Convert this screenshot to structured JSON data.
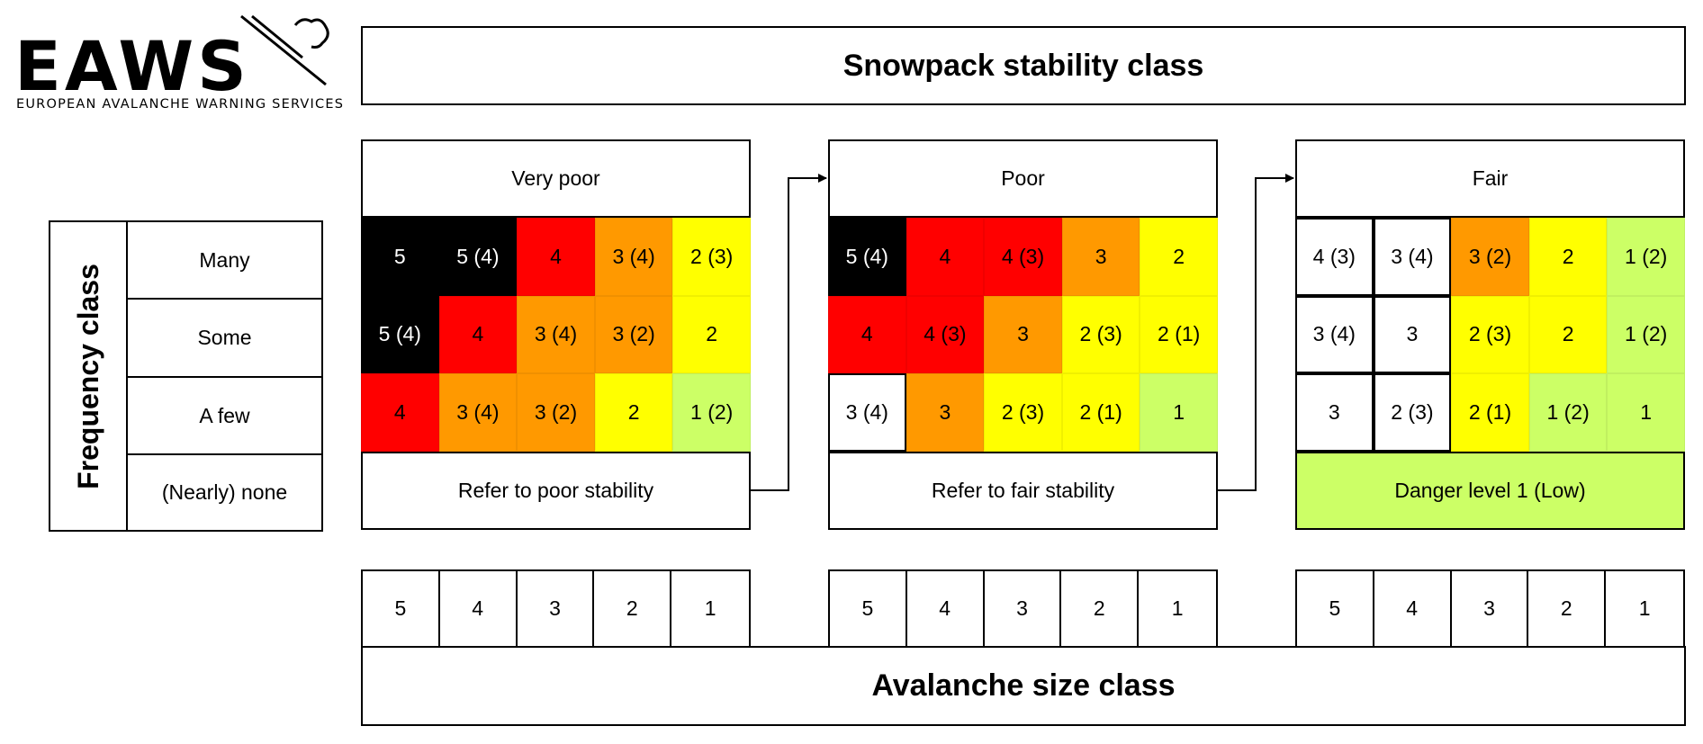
{
  "logo": {
    "text": "EAWS",
    "subtitle": "EUROPEAN AVALANCHE WARNING SERVICES"
  },
  "header": {
    "title": "Snowpack stability class"
  },
  "footer": {
    "title": "Avalanche size class"
  },
  "frequency": {
    "title": "Frequency class",
    "rows": [
      "Many",
      "Some",
      "A few",
      "(Nearly) none"
    ]
  },
  "colors": {
    "black": "#000000",
    "red": "#ff0000",
    "orange": "#ff9900",
    "yellow": "#ffff00",
    "green": "#ccff66",
    "white": "#ffffff"
  },
  "panels": [
    {
      "title": "Very poor",
      "grid": [
        [
          {
            "v": "5",
            "c": "black"
          },
          {
            "v": "5 (4)",
            "c": "black"
          },
          {
            "v": "4",
            "c": "red"
          },
          {
            "v": "3 (4)",
            "c": "orange"
          },
          {
            "v": "2 (3)",
            "c": "yellow"
          }
        ],
        [
          {
            "v": "5 (4)",
            "c": "black"
          },
          {
            "v": "4",
            "c": "red"
          },
          {
            "v": "3 (4)",
            "c": "orange"
          },
          {
            "v": "3 (2)",
            "c": "orange"
          },
          {
            "v": "2",
            "c": "yellow"
          }
        ],
        [
          {
            "v": "4",
            "c": "red"
          },
          {
            "v": "3 (4)",
            "c": "orange"
          },
          {
            "v": "3 (2)",
            "c": "orange"
          },
          {
            "v": "2",
            "c": "yellow"
          },
          {
            "v": "1 (2)",
            "c": "green"
          }
        ]
      ],
      "bottom": {
        "text": "Refer to poor stability",
        "c": "white"
      },
      "sizes": [
        "5",
        "4",
        "3",
        "2",
        "1"
      ]
    },
    {
      "title": "Poor",
      "grid": [
        [
          {
            "v": "5 (4)",
            "c": "black"
          },
          {
            "v": "4",
            "c": "red"
          },
          {
            "v": "4 (3)",
            "c": "red"
          },
          {
            "v": "3",
            "c": "orange"
          },
          {
            "v": "2",
            "c": "yellow"
          }
        ],
        [
          {
            "v": "4",
            "c": "red"
          },
          {
            "v": "4 (3)",
            "c": "red"
          },
          {
            "v": "3",
            "c": "orange"
          },
          {
            "v": "2 (3)",
            "c": "yellow"
          },
          {
            "v": "2 (1)",
            "c": "yellow"
          }
        ],
        [
          {
            "v": "3 (4)",
            "c": "white"
          },
          {
            "v": "3",
            "c": "orange"
          },
          {
            "v": "2 (3)",
            "c": "yellow"
          },
          {
            "v": "2 (1)",
            "c": "yellow"
          },
          {
            "v": "1",
            "c": "green"
          }
        ]
      ],
      "bottom": {
        "text": "Refer to fair stability",
        "c": "white"
      },
      "sizes": [
        "5",
        "4",
        "3",
        "2",
        "1"
      ]
    },
    {
      "title": "Fair",
      "grid": [
        [
          {
            "v": "4 (3)",
            "c": "white"
          },
          {
            "v": "3 (4)",
            "c": "white"
          },
          {
            "v": "3 (2)",
            "c": "orange"
          },
          {
            "v": "2",
            "c": "yellow"
          },
          {
            "v": "1 (2)",
            "c": "green"
          }
        ],
        [
          {
            "v": "3 (4)",
            "c": "white"
          },
          {
            "v": "3",
            "c": "white"
          },
          {
            "v": "2 (3)",
            "c": "yellow"
          },
          {
            "v": "2",
            "c": "yellow"
          },
          {
            "v": "1 (2)",
            "c": "green"
          }
        ],
        [
          {
            "v": "3",
            "c": "white"
          },
          {
            "v": "2 (3)",
            "c": "white"
          },
          {
            "v": "2 (1)",
            "c": "yellow"
          },
          {
            "v": "1 (2)",
            "c": "green"
          },
          {
            "v": "1",
            "c": "green"
          }
        ]
      ],
      "bottom": {
        "text": "Danger level 1 (Low)",
        "c": "green"
      },
      "sizes": [
        "5",
        "4",
        "3",
        "2",
        "1"
      ]
    }
  ]
}
